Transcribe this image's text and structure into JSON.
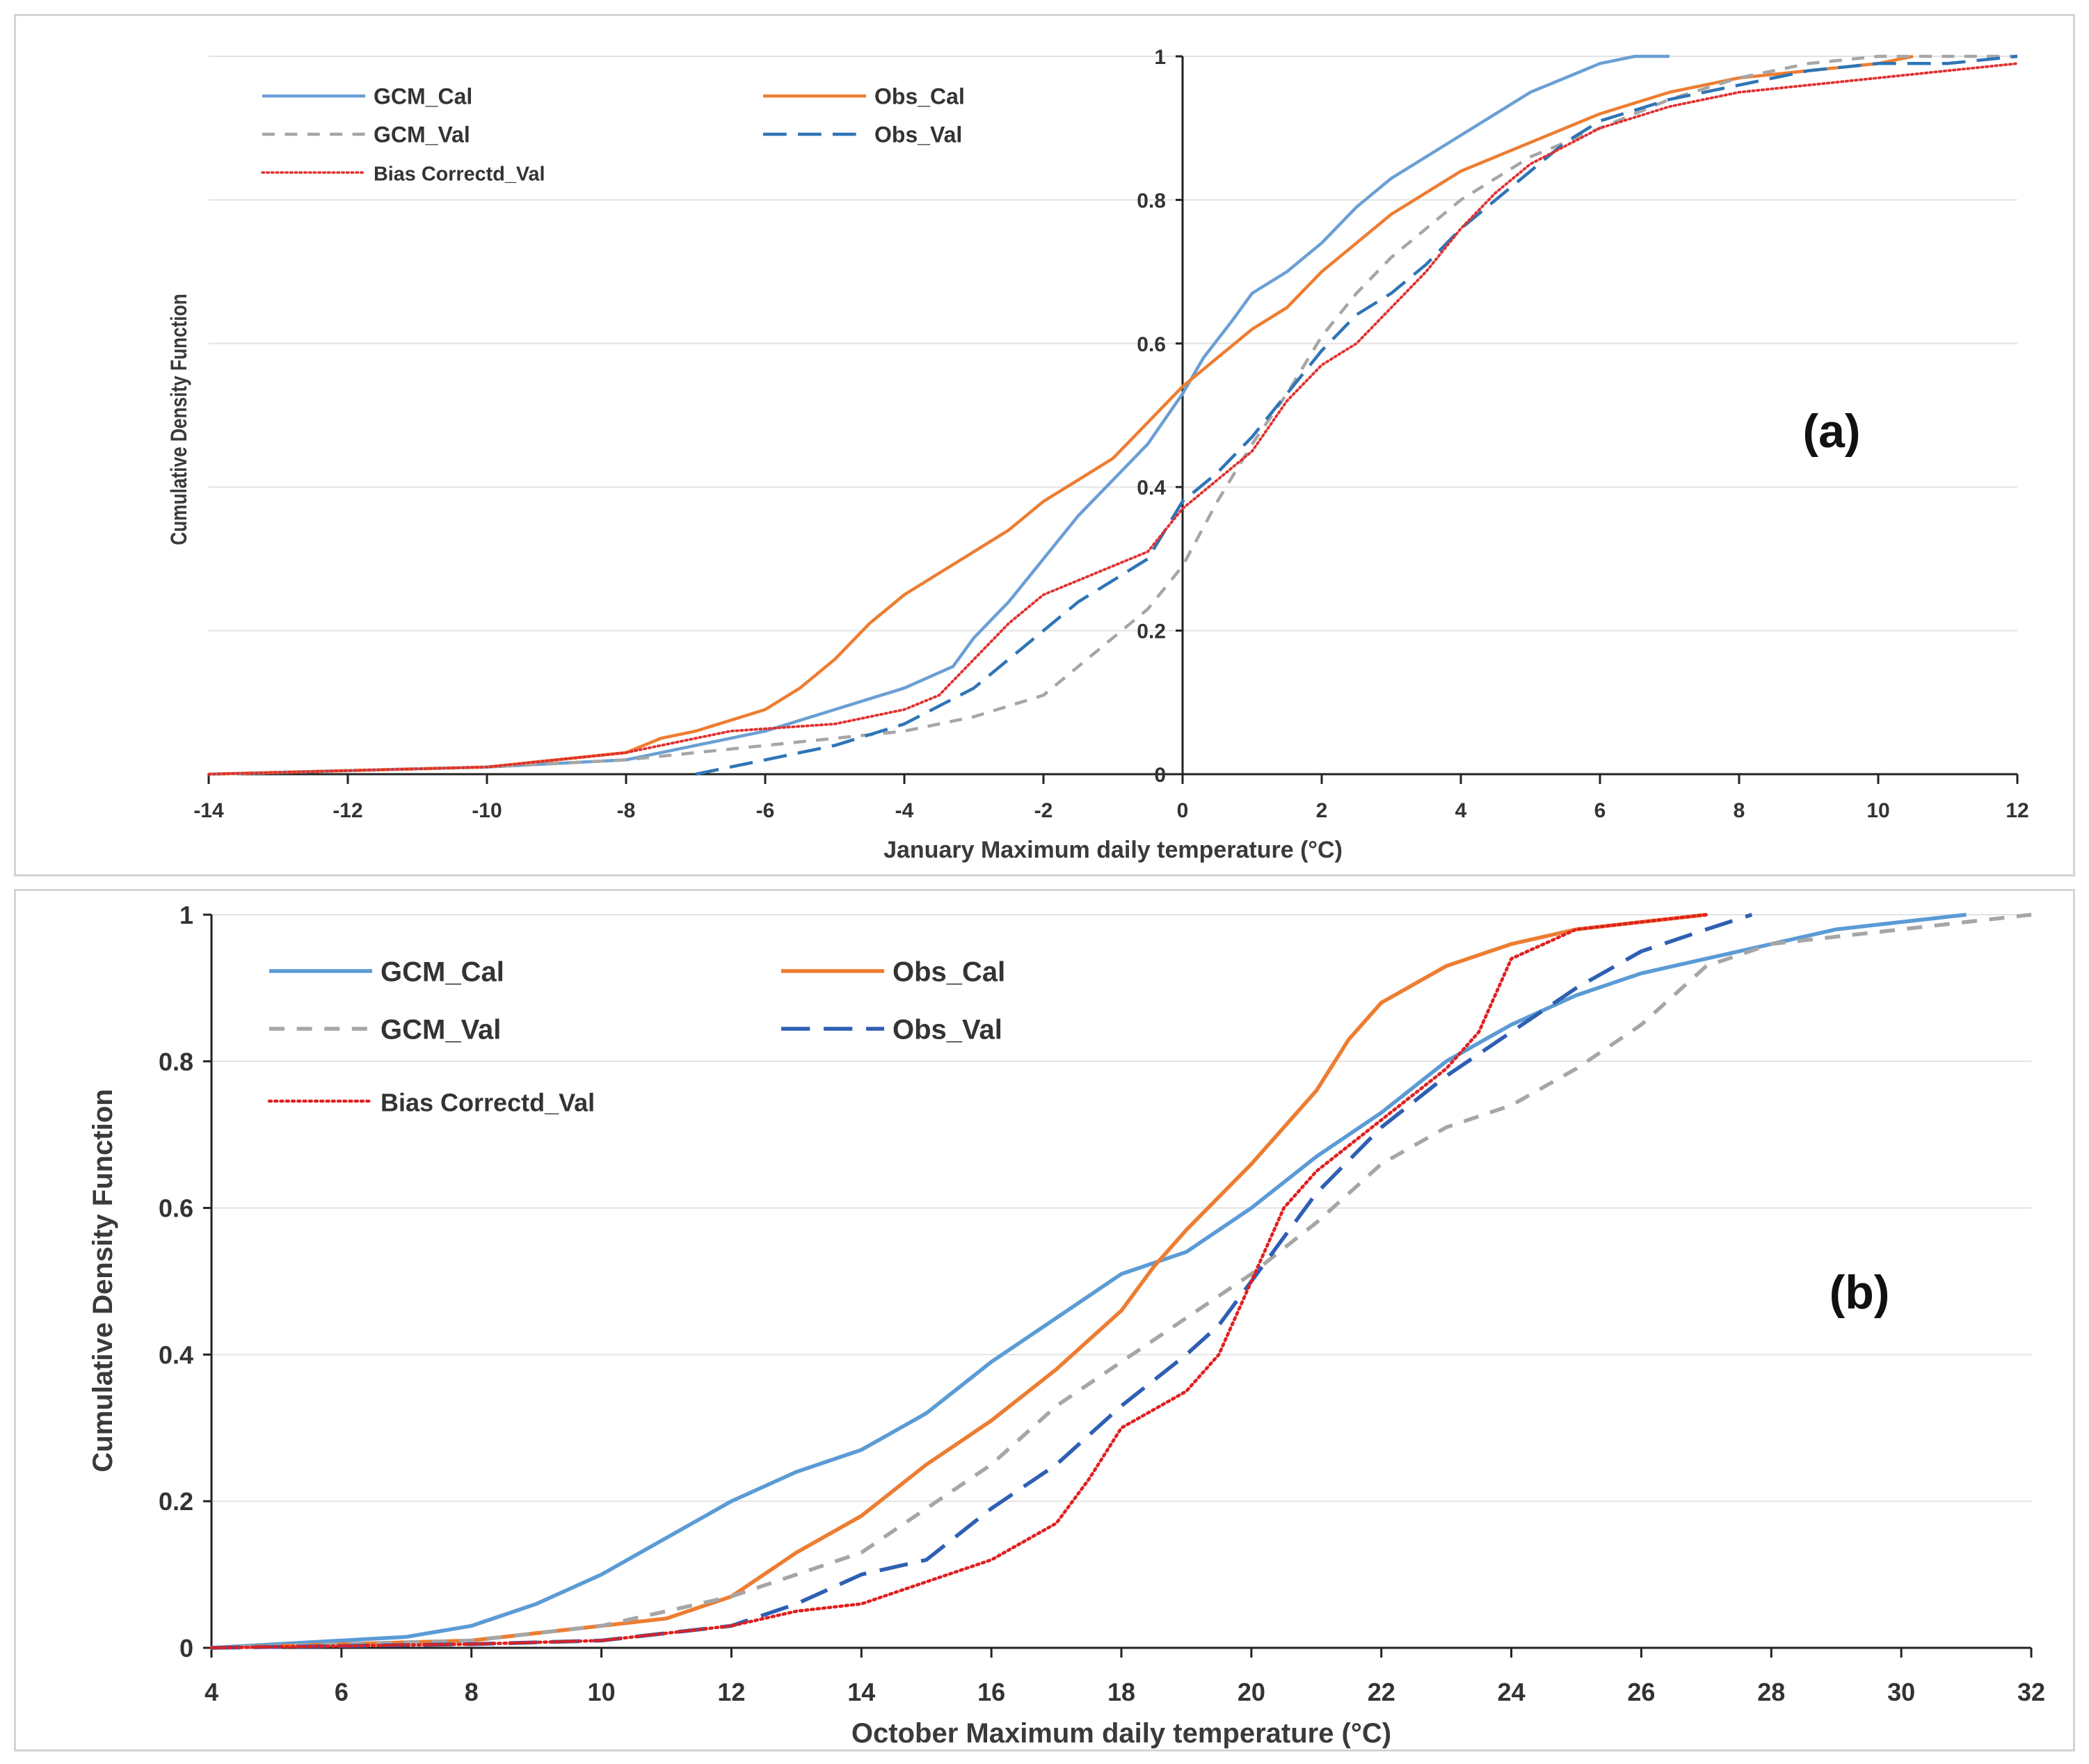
{
  "chart_data": [
    {
      "id": "a",
      "type": "line",
      "panel_label": "(a)",
      "title": "",
      "xlabel": "January Maximum daily temperature (°C)",
      "ylabel": "Cumulative Density Function",
      "xlim": [
        -14,
        12
      ],
      "ylim": [
        0,
        1
      ],
      "x_ticks": [
        "-14",
        "-12",
        "-10",
        "-8",
        "-6",
        "-4",
        "-2",
        "0",
        "2",
        "4",
        "6",
        "8",
        "10",
        "12"
      ],
      "y_ticks": [
        "0",
        "0.2",
        "0.4",
        "0.6",
        "0.8",
        "1"
      ],
      "grid": true,
      "legend_position": "top-left",
      "series": [
        {
          "name": "GCM_Cal",
          "color": "#6a9fd4",
          "style": "solid",
          "x": [
            -14,
            -10,
            -8,
            -7,
            -6,
            -5,
            -4,
            -3.3,
            -3,
            -2.5,
            -2,
            -1.5,
            -1,
            -0.5,
            0,
            0.3,
            0.7,
            1,
            1.5,
            2,
            2.5,
            3,
            3.5,
            4,
            4.5,
            5,
            5.5,
            6,
            6.5,
            7
          ],
          "y": [
            0,
            0.01,
            0.02,
            0.04,
            0.06,
            0.09,
            0.12,
            0.15,
            0.19,
            0.24,
            0.3,
            0.36,
            0.41,
            0.46,
            0.53,
            0.58,
            0.63,
            0.67,
            0.7,
            0.74,
            0.79,
            0.83,
            0.86,
            0.89,
            0.92,
            0.95,
            0.97,
            0.99,
            1.0,
            1.0
          ],
          "values": [
            0,
            0.01,
            0.02,
            0.04,
            0.06,
            0.09,
            0.12,
            0.15,
            0.19,
            0.24,
            0.3,
            0.36,
            0.41,
            0.46,
            0.53,
            0.58,
            0.63,
            0.67,
            0.7,
            0.74,
            0.79,
            0.83,
            0.86,
            0.89,
            0.92,
            0.95,
            0.97,
            0.99,
            1.0,
            1.0
          ]
        },
        {
          "name": "Obs_Cal",
          "color": "#ed7d31",
          "style": "solid",
          "x": [
            -14,
            -10,
            -9,
            -8,
            -7.5,
            -7,
            -6,
            -5.5,
            -5,
            -4.5,
            -4,
            -3.5,
            -3,
            -2.5,
            -2,
            -1.5,
            -1,
            -0.5,
            0,
            0.5,
            1,
            1.5,
            2,
            2.5,
            3,
            3.5,
            4,
            5,
            6,
            7,
            8,
            9,
            10,
            10.5
          ],
          "y": [
            0,
            0.01,
            0.02,
            0.03,
            0.05,
            0.06,
            0.09,
            0.12,
            0.16,
            0.21,
            0.25,
            0.28,
            0.31,
            0.34,
            0.38,
            0.41,
            0.44,
            0.49,
            0.54,
            0.58,
            0.62,
            0.65,
            0.7,
            0.74,
            0.78,
            0.81,
            0.84,
            0.88,
            0.92,
            0.95,
            0.97,
            0.98,
            0.99,
            1.0
          ],
          "values": [
            0,
            0.01,
            0.02,
            0.03,
            0.05,
            0.06,
            0.09,
            0.12,
            0.16,
            0.21,
            0.25,
            0.28,
            0.31,
            0.34,
            0.38,
            0.41,
            0.44,
            0.49,
            0.54,
            0.58,
            0.62,
            0.65,
            0.7,
            0.74,
            0.78,
            0.81,
            0.84,
            0.88,
            0.92,
            0.95,
            0.97,
            0.98,
            0.99,
            1.0
          ]
        },
        {
          "name": "GCM_Val",
          "color": "#a6a6a6",
          "style": "dash",
          "x": [
            -14,
            -10,
            -8,
            -7,
            -6,
            -5,
            -4,
            -3,
            -2,
            -1.5,
            -1,
            -0.5,
            0,
            0.5,
            1,
            1.5,
            2,
            2.5,
            3,
            3.5,
            4,
            4.5,
            5,
            6,
            7,
            8,
            9,
            10,
            11,
            12
          ],
          "y": [
            0,
            0.01,
            0.02,
            0.03,
            0.04,
            0.05,
            0.06,
            0.08,
            0.11,
            0.15,
            0.19,
            0.23,
            0.29,
            0.38,
            0.46,
            0.53,
            0.61,
            0.67,
            0.72,
            0.76,
            0.8,
            0.83,
            0.86,
            0.9,
            0.94,
            0.97,
            0.99,
            1.0,
            1.0,
            1.0
          ],
          "values": [
            0,
            0.01,
            0.02,
            0.03,
            0.04,
            0.05,
            0.06,
            0.08,
            0.11,
            0.15,
            0.19,
            0.23,
            0.29,
            0.38,
            0.46,
            0.53,
            0.61,
            0.67,
            0.72,
            0.76,
            0.8,
            0.83,
            0.86,
            0.9,
            0.94,
            0.97,
            0.99,
            1.0,
            1.0,
            1.0
          ]
        },
        {
          "name": "Obs_Val",
          "color": "#2e75b6",
          "style": "longdash",
          "x": [
            -7,
            -6,
            -5,
            -4,
            -3,
            -2.5,
            -2,
            -1.5,
            -1,
            -0.5,
            0,
            0.5,
            1,
            1.5,
            2,
            2.5,
            3,
            3.5,
            4,
            4.5,
            5,
            5.5,
            6,
            7,
            8,
            9,
            10,
            11,
            12
          ],
          "y": [
            0,
            0.02,
            0.04,
            0.07,
            0.12,
            0.16,
            0.2,
            0.24,
            0.27,
            0.3,
            0.38,
            0.42,
            0.47,
            0.53,
            0.59,
            0.64,
            0.67,
            0.71,
            0.76,
            0.8,
            0.84,
            0.88,
            0.91,
            0.94,
            0.96,
            0.98,
            0.99,
            0.99,
            1.0
          ],
          "values": [
            0,
            0.02,
            0.04,
            0.07,
            0.12,
            0.16,
            0.2,
            0.24,
            0.27,
            0.3,
            0.38,
            0.42,
            0.47,
            0.53,
            0.59,
            0.64,
            0.67,
            0.71,
            0.76,
            0.8,
            0.84,
            0.88,
            0.91,
            0.94,
            0.96,
            0.98,
            0.99,
            0.99,
            1.0
          ]
        },
        {
          "name": "Bias Correctd_Val",
          "color": "#e0302f",
          "style": "dot",
          "x": [
            -14,
            -10,
            -8,
            -6.5,
            -5,
            -4,
            -3.5,
            -3,
            -2.5,
            -2,
            -1.5,
            -1,
            -0.5,
            0,
            0.5,
            1,
            1.5,
            2,
            2.5,
            3,
            3.5,
            4,
            4.5,
            5,
            6,
            7,
            8,
            9,
            10,
            11,
            12
          ],
          "y": [
            0,
            0.01,
            0.03,
            0.06,
            0.07,
            0.09,
            0.11,
            0.16,
            0.21,
            0.25,
            0.27,
            0.29,
            0.31,
            0.37,
            0.41,
            0.45,
            0.52,
            0.57,
            0.6,
            0.65,
            0.7,
            0.76,
            0.81,
            0.85,
            0.9,
            0.93,
            0.95,
            0.96,
            0.97,
            0.98,
            0.99
          ],
          "values": [
            0,
            0.01,
            0.03,
            0.06,
            0.07,
            0.09,
            0.11,
            0.16,
            0.21,
            0.25,
            0.27,
            0.29,
            0.31,
            0.37,
            0.41,
            0.45,
            0.52,
            0.57,
            0.6,
            0.65,
            0.7,
            0.76,
            0.81,
            0.85,
            0.9,
            0.93,
            0.95,
            0.96,
            0.97,
            0.98,
            0.99
          ]
        }
      ]
    },
    {
      "id": "b",
      "type": "line",
      "panel_label": "(b)",
      "title": "",
      "xlabel": "October Maximum daily temperature (°C)",
      "ylabel": "Cumulative Density Function",
      "xlim": [
        4,
        32
      ],
      "ylim": [
        0,
        1
      ],
      "x_ticks": [
        "4",
        "6",
        "8",
        "10",
        "12",
        "14",
        "16",
        "18",
        "20",
        "22",
        "24",
        "26",
        "28",
        "30",
        "32"
      ],
      "y_ticks": [
        "0",
        "0.2",
        "0.4",
        "0.6",
        "0.8",
        "1"
      ],
      "grid": true,
      "legend_position": "top-left",
      "series": [
        {
          "name": "GCM_Cal",
          "color": "#5b9bd5",
          "style": "solid",
          "x": [
            4,
            6,
            7,
            8,
            9,
            10,
            11,
            12,
            13,
            14,
            15,
            16,
            17,
            18,
            19,
            20,
            21,
            22,
            23,
            24,
            25,
            26,
            27,
            28,
            29,
            30,
            31
          ],
          "y": [
            0,
            0.01,
            0.015,
            0.03,
            0.06,
            0.1,
            0.15,
            0.2,
            0.24,
            0.27,
            0.32,
            0.39,
            0.45,
            0.51,
            0.54,
            0.6,
            0.67,
            0.73,
            0.8,
            0.85,
            0.89,
            0.92,
            0.94,
            0.96,
            0.98,
            0.99,
            1.0
          ],
          "values": [
            0,
            0.01,
            0.015,
            0.03,
            0.06,
            0.1,
            0.15,
            0.2,
            0.24,
            0.27,
            0.32,
            0.39,
            0.45,
            0.51,
            0.54,
            0.6,
            0.67,
            0.73,
            0.8,
            0.85,
            0.89,
            0.92,
            0.94,
            0.96,
            0.98,
            0.99,
            1.0
          ]
        },
        {
          "name": "Obs_Cal",
          "color": "#ed7d31",
          "style": "solid",
          "x": [
            4,
            6,
            8,
            9,
            10,
            11,
            12,
            13,
            14,
            15,
            16,
            17,
            18,
            18.5,
            19,
            20,
            21,
            21.5,
            22,
            23,
            24,
            25,
            26,
            27
          ],
          "y": [
            0,
            0.005,
            0.01,
            0.02,
            0.03,
            0.04,
            0.07,
            0.13,
            0.18,
            0.25,
            0.31,
            0.38,
            0.46,
            0.52,
            0.57,
            0.66,
            0.76,
            0.83,
            0.88,
            0.93,
            0.96,
            0.98,
            0.99,
            1.0
          ],
          "values": [
            0,
            0.005,
            0.01,
            0.02,
            0.03,
            0.04,
            0.07,
            0.13,
            0.18,
            0.25,
            0.31,
            0.38,
            0.46,
            0.52,
            0.57,
            0.66,
            0.76,
            0.83,
            0.88,
            0.93,
            0.96,
            0.98,
            0.99,
            1.0
          ]
        },
        {
          "name": "GCM_Val",
          "color": "#a6a6a6",
          "style": "dash",
          "x": [
            4,
            6,
            8,
            10,
            11,
            12,
            13,
            14,
            15,
            16,
            17,
            18,
            19,
            20,
            21,
            22,
            23,
            24,
            25,
            26,
            27,
            28,
            29,
            30,
            31,
            32
          ],
          "y": [
            0,
            0.005,
            0.01,
            0.03,
            0.05,
            0.07,
            0.1,
            0.13,
            0.19,
            0.25,
            0.33,
            0.39,
            0.45,
            0.51,
            0.58,
            0.66,
            0.71,
            0.74,
            0.79,
            0.85,
            0.93,
            0.96,
            0.97,
            0.98,
            0.99,
            1.0
          ],
          "values": [
            0,
            0.005,
            0.01,
            0.03,
            0.05,
            0.07,
            0.1,
            0.13,
            0.19,
            0.25,
            0.33,
            0.39,
            0.45,
            0.51,
            0.58,
            0.66,
            0.71,
            0.74,
            0.79,
            0.85,
            0.93,
            0.96,
            0.97,
            0.98,
            0.99,
            1.0
          ]
        },
        {
          "name": "Obs_Val",
          "color": "#2e5fb4",
          "style": "longdash",
          "x": [
            4,
            8,
            10,
            11,
            12,
            13,
            14,
            15,
            16,
            17,
            17.5,
            18,
            19,
            19.5,
            20,
            20.5,
            21,
            22,
            23,
            24,
            25,
            26,
            27,
            27.7
          ],
          "y": [
            0,
            0.005,
            0.01,
            0.02,
            0.03,
            0.06,
            0.1,
            0.12,
            0.19,
            0.25,
            0.29,
            0.33,
            0.4,
            0.44,
            0.5,
            0.56,
            0.62,
            0.71,
            0.78,
            0.84,
            0.9,
            0.95,
            0.98,
            1.0
          ],
          "values": [
            0,
            0.005,
            0.01,
            0.02,
            0.03,
            0.06,
            0.1,
            0.12,
            0.19,
            0.25,
            0.29,
            0.33,
            0.4,
            0.44,
            0.5,
            0.56,
            0.62,
            0.71,
            0.78,
            0.84,
            0.9,
            0.95,
            0.98,
            1.0
          ]
        },
        {
          "name": "Bias Correctd_Val",
          "color": "#e02020",
          "style": "dot",
          "x": [
            4,
            8,
            10,
            12,
            13,
            14,
            15,
            16,
            17,
            17.5,
            18,
            19,
            19.5,
            20,
            20.5,
            21,
            22,
            23,
            23.5,
            24,
            25,
            26,
            27
          ],
          "y": [
            0,
            0.005,
            0.01,
            0.03,
            0.05,
            0.06,
            0.09,
            0.12,
            0.17,
            0.23,
            0.3,
            0.35,
            0.4,
            0.5,
            0.6,
            0.65,
            0.72,
            0.79,
            0.84,
            0.94,
            0.98,
            0.99,
            1.0
          ],
          "values": [
            0,
            0.005,
            0.01,
            0.03,
            0.05,
            0.06,
            0.09,
            0.12,
            0.17,
            0.23,
            0.3,
            0.35,
            0.4,
            0.5,
            0.6,
            0.65,
            0.72,
            0.79,
            0.84,
            0.94,
            0.98,
            0.99,
            1.0
          ]
        }
      ]
    }
  ]
}
